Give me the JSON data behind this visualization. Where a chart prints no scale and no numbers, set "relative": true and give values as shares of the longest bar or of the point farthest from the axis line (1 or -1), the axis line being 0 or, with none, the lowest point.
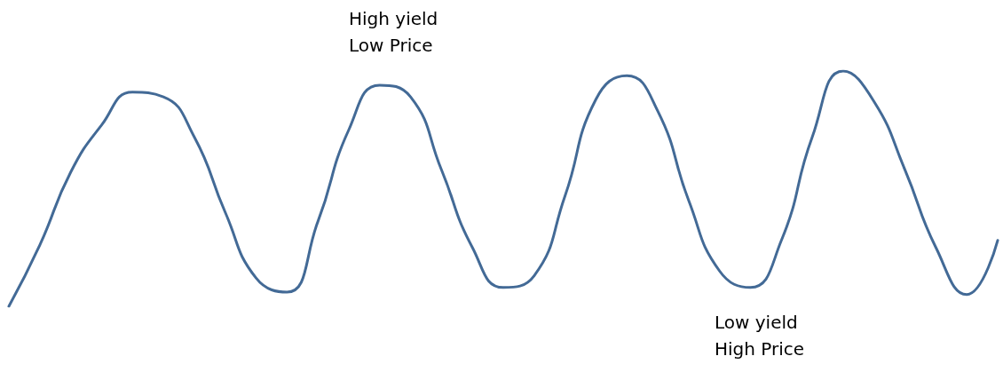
{
  "chart_data": {
    "type": "line",
    "relative": true,
    "categories": [
      null,
      null,
      null,
      null,
      null,
      null,
      null,
      null,
      null,
      null,
      null,
      null,
      null,
      null,
      null,
      null,
      null,
      null,
      null,
      null,
      null,
      null,
      null,
      null,
      null,
      null,
      null,
      null,
      null,
      null,
      null,
      null,
      null
    ],
    "series": [
      {
        "color": "#436a96",
        "values": [
          0,
          0.26,
          0.57,
          0.77,
          0.91,
          0.89,
          0.72,
          0.4,
          0.12,
          0.06,
          0.36,
          0.75,
          0.94,
          0.89,
          0.58,
          0.25,
          0.08,
          0.13,
          0.47,
          0.88,
          0.98,
          0.83,
          0.45,
          0.15,
          0.08,
          0.28,
          0.72,
          1,
          0.87,
          0.58,
          0.25,
          0.05,
          0.28
        ]
      }
    ],
    "annotations": [
      "High yield\nLow Price",
      "Low yield\nHigh Price"
    ],
    "grid": false,
    "marker": "none",
    "line_style": "solid"
  }
}
